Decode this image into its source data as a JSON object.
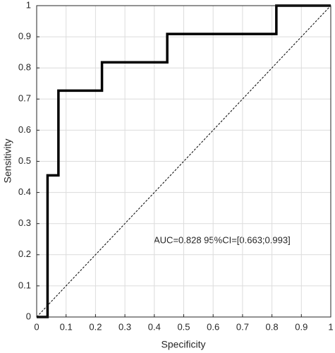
{
  "chart_data": {
    "type": "line",
    "xlabel": "Specificity",
    "ylabel": "Sensitivity",
    "annotation": "AUC=0.828 95%CI=[0.663;0.993]",
    "x": [
      0,
      0.037,
      0.037,
      0.074,
      0.074,
      0.222,
      0.222,
      0.444,
      0.444,
      0.815,
      0.815,
      1
    ],
    "values": [
      0,
      0,
      0.455,
      0.455,
      0.727,
      0.727,
      0.818,
      0.818,
      0.909,
      0.909,
      1,
      1
    ],
    "color": "#000000",
    "diagonal": true,
    "xlim": [
      0,
      1
    ],
    "ylim": [
      0,
      1
    ],
    "xticks": [
      0,
      0.1,
      0.2,
      0.3,
      0.4,
      0.5,
      0.6,
      0.7,
      0.8,
      0.9,
      1
    ],
    "yticks": [
      0,
      0.1,
      0.2,
      0.3,
      0.4,
      0.5,
      0.6,
      0.7,
      0.8,
      0.9,
      1
    ],
    "grid": true
  }
}
